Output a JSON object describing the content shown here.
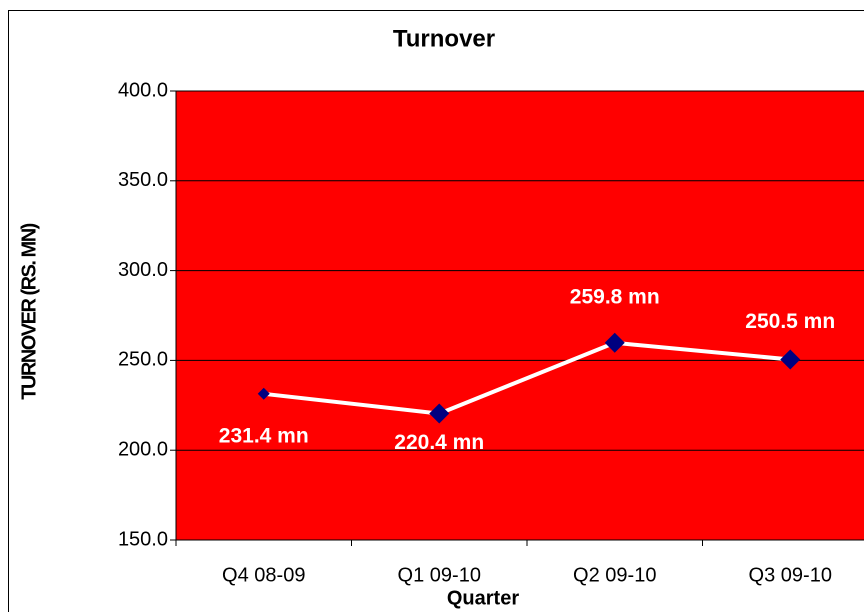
{
  "chart_data": {
    "type": "line",
    "title": "Turnover",
    "x_label": "Quarter",
    "y_label": "TURNOVER (RS. MN)",
    "categories": [
      "Q4 08-09",
      "Q1 09-10",
      "Q2 09-10",
      "Q3 09-10"
    ],
    "series": [
      {
        "name": "Turnover",
        "color": "#000080",
        "line_color": "#ffffff",
        "values": [
          231.4,
          220.4,
          259.8,
          250.5
        ],
        "value_labels": [
          "231.4 mn",
          "220.4 mn",
          "259.8 mn",
          "250.5 mn"
        ]
      }
    ],
    "ylim": [
      150,
      400
    ],
    "yticks": [
      {
        "value": 150,
        "label": "150.0"
      },
      {
        "value": 200,
        "label": "200.0"
      },
      {
        "value": 250,
        "label": "250.0"
      },
      {
        "value": 300,
        "label": "300.0"
      },
      {
        "value": 350,
        "label": "350.0"
      },
      {
        "value": 400,
        "label": "400.0"
      }
    ],
    "grid": true,
    "plot_background": "#ff0000"
  }
}
